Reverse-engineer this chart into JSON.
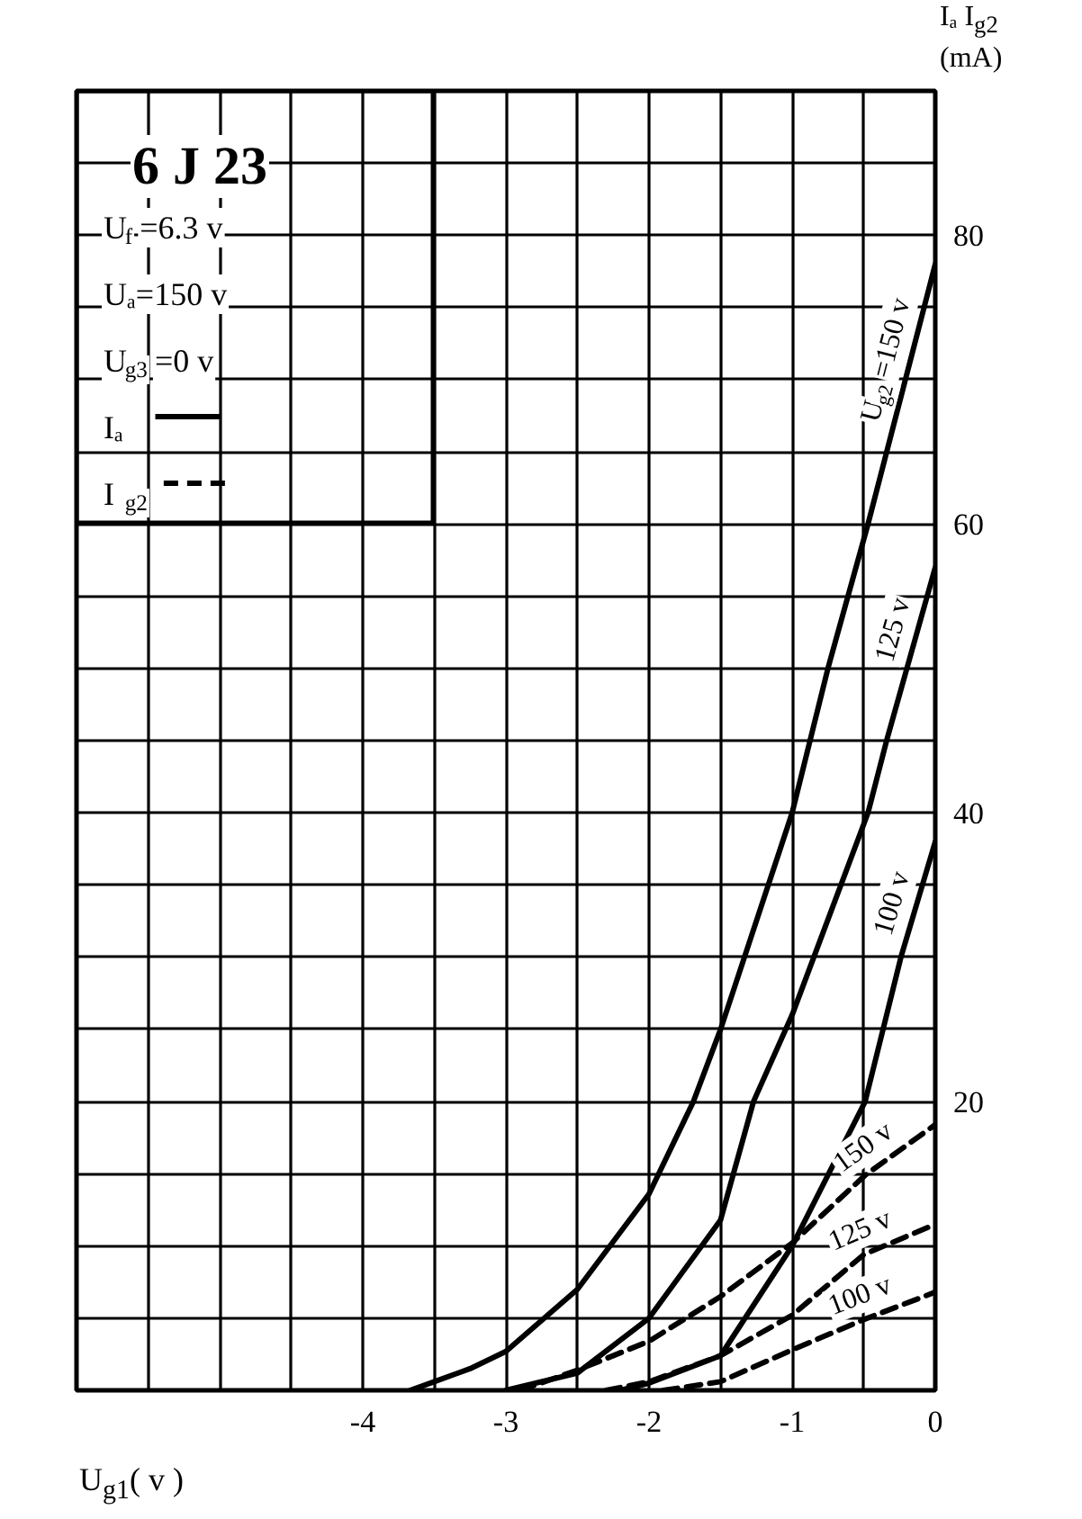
{
  "chart_data": {
    "type": "line",
    "title": "6 J 23",
    "xlabel": "U$_{g1}$( v )",
    "ylabel": "Iₐ I$_{g2}$ (mA)",
    "annotations": [
      "U$_{f}$=6.3 v",
      "Uₐ=150 v",
      "U$_{g3}$=0 v",
      "Iₐ",
      "I$_{g2}$"
    ],
    "series": [
      {
        "name": "U$_{g2}$=150 v",
        "color": "#000000",
        "line_style": "solid",
        "x": [
          -3.67,
          -3.5,
          -3.25,
          -3,
          -2.5,
          -2,
          -1.69,
          -1.5,
          -1,
          -0.75,
          -0.47,
          0
        ],
        "values": [
          0,
          0.6,
          1.5,
          2.7,
          7,
          13.6,
          20,
          25,
          40,
          50,
          60,
          78
        ]
      },
      {
        "name": "125 v",
        "color": "#000000",
        "line_style": "solid",
        "x": [
          -3,
          -2.5,
          -2,
          -1.5,
          -1.27,
          -1,
          -0.47,
          -0.34,
          0
        ],
        "values": [
          0,
          1.2,
          5,
          11.8,
          20,
          26,
          40,
          45,
          57
        ]
      },
      {
        "name": "100 v",
        "color": "#000000",
        "line_style": "solid",
        "x": [
          -2.2,
          -2,
          -1.5,
          -1,
          -0.75,
          -0.49,
          -0.24,
          0
        ],
        "values": [
          0,
          0.5,
          2.4,
          10,
          14.9,
          20,
          30,
          38
        ]
      },
      {
        "name": "150 v",
        "color": "#000000",
        "line_style": "dashed",
        "x": [
          -2.9,
          -2.5,
          -2,
          -1.5,
          -1,
          -0.49,
          0
        ],
        "values": [
          0,
          1.4,
          3.4,
          6.5,
          10.2,
          14.9,
          18.4
        ]
      },
      {
        "name": "125 v",
        "color": "#000000",
        "line_style": "dashed",
        "x": [
          -2.3,
          -2,
          -1.5,
          -1,
          -0.5,
          0
        ],
        "values": [
          0,
          0.6,
          2.4,
          5.2,
          9.4,
          11.5
        ]
      },
      {
        "name": "100 v",
        "color": "#000000",
        "line_style": "dashed",
        "x": [
          -1.9,
          -1.5,
          -1,
          -0.5,
          0
        ],
        "values": [
          0,
          0.6,
          2.8,
          4.9,
          6.8
        ]
      }
    ],
    "xlim": [
      -6,
      0
    ],
    "ylim": [
      0,
      90
    ],
    "xticks": [
      {
        "value": -6,
        "label": null
      },
      {
        "value": -5.5,
        "label": null
      },
      {
        "value": -5,
        "label": null
      },
      {
        "value": -4.5,
        "label": null
      },
      -4,
      {
        "value": -3.5,
        "label": null
      },
      -3,
      {
        "value": -2.5,
        "label": null
      },
      -2,
      {
        "value": -1.5,
        "label": null
      },
      -1,
      {
        "value": -0.5,
        "label": null
      },
      0
    ],
    "yticks": [
      {
        "value": 0,
        "label": null
      },
      {
        "value": 5,
        "label": null
      },
      {
        "value": 10,
        "label": null
      },
      {
        "value": 15,
        "label": null
      },
      20,
      {
        "value": 25,
        "label": null
      },
      {
        "value": 30,
        "label": null
      },
      {
        "value": 35,
        "label": null
      },
      40,
      {
        "value": 45,
        "label": null
      },
      {
        "value": 50,
        "label": null
      },
      {
        "value": 55,
        "label": null
      },
      60,
      {
        "value": 65,
        "label": null
      },
      {
        "value": 70,
        "label": null
      },
      {
        "value": 75,
        "label": null
      },
      80,
      {
        "value": 85,
        "label": null
      },
      {
        "value": 90,
        "label": null
      }
    ],
    "grid": true
  }
}
